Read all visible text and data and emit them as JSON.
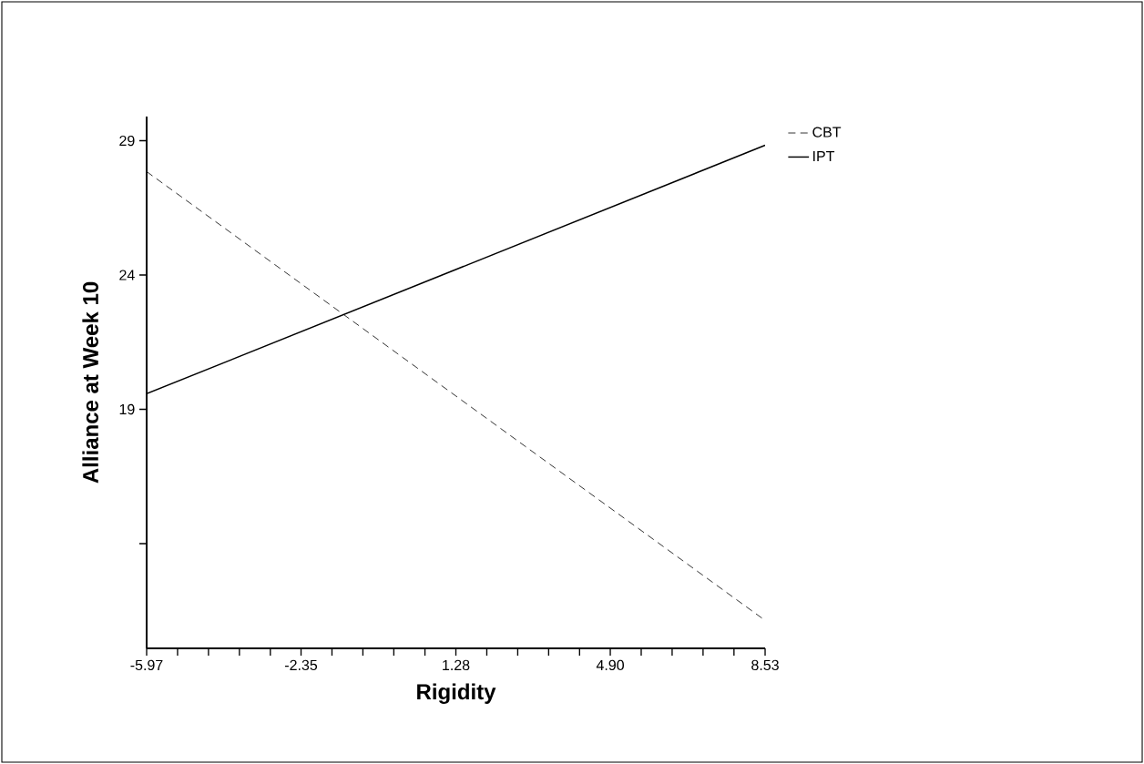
{
  "chart_data": {
    "type": "line",
    "xlabel": "Rigidity",
    "ylabel": "Alliance at Week 10",
    "x": [
      -5.97,
      8.53
    ],
    "series": [
      {
        "name": "CBT",
        "color": "#000000",
        "line_style": "dashed",
        "values": [
          27.85,
          11.14
        ]
      },
      {
        "name": "IPT",
        "color": "#000000",
        "line_style": "solid",
        "values": [
          19.58,
          28.83
        ]
      }
    ],
    "xlim": [
      -5.97,
      8.53
    ],
    "ylim": [
      10.1,
      29.9
    ],
    "xticks": [
      {
        "value": -5.97,
        "label": "-5.97"
      },
      {
        "value": -5.245,
        "label": null
      },
      {
        "value": -4.52,
        "label": null
      },
      {
        "value": -3.795,
        "label": null
      },
      {
        "value": -3.07,
        "label": null
      },
      {
        "value": -2.35,
        "label": "-2.35"
      },
      {
        "value": -1.625,
        "label": null
      },
      {
        "value": -0.9,
        "label": null
      },
      {
        "value": -0.175,
        "label": null
      },
      {
        "value": 0.555,
        "label": null
      },
      {
        "value": 1.28,
        "label": "1.28"
      },
      {
        "value": 2.005,
        "label": null
      },
      {
        "value": 2.73,
        "label": null
      },
      {
        "value": 3.455,
        "label": null
      },
      {
        "value": 4.18,
        "label": null
      },
      {
        "value": 4.9,
        "label": "4.90"
      },
      {
        "value": 5.625,
        "label": null
      },
      {
        "value": 6.35,
        "label": null
      },
      {
        "value": 7.075,
        "label": null
      },
      {
        "value": 7.8,
        "label": null
      },
      {
        "value": 8.53,
        "label": "8.53"
      }
    ],
    "yticks": [
      19,
      24,
      29,
      {
        "value": 14,
        "label": null
      }
    ],
    "legend": "top right",
    "marker": "none"
  }
}
